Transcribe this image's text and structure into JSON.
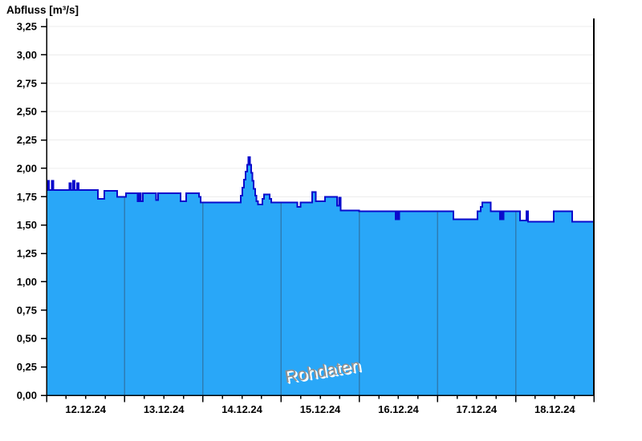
{
  "header": {
    "title": "Abfluss [m³/s]"
  },
  "watermark": "Rohdaten",
  "chart_data": {
    "type": "area",
    "title": "Abfluss [m³/s]",
    "ylabel": "Abfluss [m³/s]",
    "xlabel": "",
    "ylim": [
      0,
      3.25
    ],
    "y_step": 0.25,
    "y_tick_labels": [
      "0,00",
      "0,25",
      "0,50",
      "0,75",
      "1,00",
      "1,25",
      "1,50",
      "1,75",
      "2,00",
      "2,25",
      "2,50",
      "2,75",
      "3,00",
      "3,25"
    ],
    "x_tick_labels": [
      "12.12.24",
      "13.12.24",
      "14.12.24",
      "15.12.24",
      "16.12.24",
      "17.12.24",
      "18.12.24"
    ],
    "x_days_total": 7,
    "x_hours_total": 168,
    "x_minor_tick_hours": 6,
    "grid": "horizontal gridlines only; vertical day lines drawn inside fill",
    "legend": "none",
    "watermark_text": "Rohdaten",
    "colors": {
      "fill": "#29A7F8",
      "line": "#0A0ACC",
      "day_line": "#2D7CB4",
      "grid": "#ECECEC",
      "axis": "#000000",
      "watermark": "#909090",
      "background": "#FFFFFF"
    },
    "series": [
      {
        "name": "Rohdaten",
        "unit": "m³/s",
        "step_points_hours_value": [
          [
            0,
            1.81
          ],
          [
            0.2,
            1.89
          ],
          [
            0.7,
            1.81
          ],
          [
            1.6,
            1.89
          ],
          [
            2.1,
            1.81
          ],
          [
            7.0,
            1.87
          ],
          [
            7.5,
            1.81
          ],
          [
            8.1,
            1.89
          ],
          [
            8.6,
            1.81
          ],
          [
            9.3,
            1.87
          ],
          [
            9.8,
            1.81
          ],
          [
            15.8,
            1.73
          ],
          [
            17.7,
            1.8
          ],
          [
            21.7,
            1.75
          ],
          [
            24.4,
            1.78
          ],
          [
            28.0,
            1.71
          ],
          [
            28.5,
            1.78
          ],
          [
            29.0,
            1.71
          ],
          [
            29.5,
            1.78
          ],
          [
            33.6,
            1.72
          ],
          [
            34.2,
            1.78
          ],
          [
            41.1,
            1.71
          ],
          [
            42.9,
            1.78
          ],
          [
            46.8,
            1.75
          ],
          [
            47.3,
            1.7
          ],
          [
            59.6,
            1.76
          ],
          [
            60.1,
            1.83
          ],
          [
            60.6,
            1.9
          ],
          [
            61.1,
            1.97
          ],
          [
            61.6,
            2.03
          ],
          [
            62.0,
            2.1
          ],
          [
            62.4,
            2.03
          ],
          [
            62.8,
            1.96
          ],
          [
            63.2,
            1.89
          ],
          [
            63.6,
            1.82
          ],
          [
            64.0,
            1.76
          ],
          [
            64.4,
            1.71
          ],
          [
            64.9,
            1.68
          ],
          [
            66.3,
            1.73
          ],
          [
            66.8,
            1.77
          ],
          [
            68.5,
            1.73
          ],
          [
            69.0,
            1.7
          ],
          [
            77.0,
            1.66
          ],
          [
            78.0,
            1.7
          ],
          [
            81.5,
            1.79
          ],
          [
            82.7,
            1.71
          ],
          [
            85.5,
            1.75
          ],
          [
            89.2,
            1.67
          ],
          [
            89.8,
            1.74
          ],
          [
            90.3,
            1.63
          ],
          [
            96.0,
            1.62
          ],
          [
            107.2,
            1.55
          ],
          [
            107.6,
            1.62
          ],
          [
            107.9,
            1.55
          ],
          [
            108.3,
            1.62
          ],
          [
            124.9,
            1.55
          ],
          [
            132.3,
            1.62
          ],
          [
            133.3,
            1.66
          ],
          [
            133.8,
            1.7
          ],
          [
            136.3,
            1.62
          ],
          [
            139.2,
            1.55
          ],
          [
            139.6,
            1.62
          ],
          [
            139.9,
            1.55
          ],
          [
            140.3,
            1.62
          ],
          [
            145.3,
            1.54
          ],
          [
            147.3,
            1.62
          ],
          [
            147.8,
            1.53
          ],
          [
            155.7,
            1.62
          ],
          [
            161.3,
            1.53
          ],
          [
            168,
            1.53
          ]
        ]
      }
    ]
  }
}
